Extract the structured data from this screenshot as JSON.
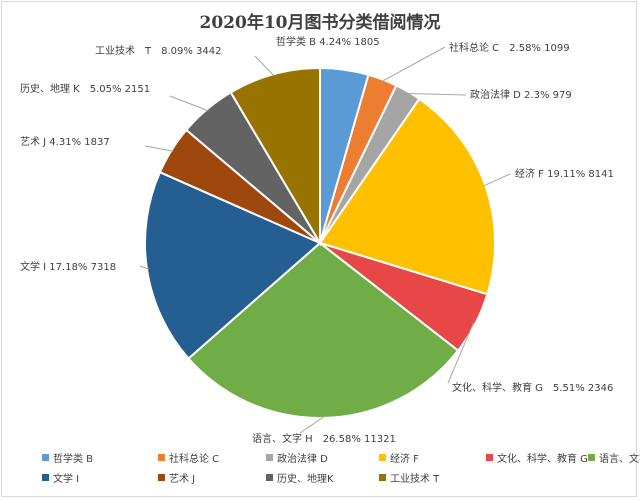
{
  "chart_data": {
    "type": "pie",
    "title": "2020年10月图书分类借阅情况",
    "slices": [
      {
        "legend": "哲学类 B",
        "label": "哲学类 B 4.24% 1805",
        "value": 1805,
        "percent": 4.24,
        "color": "#5b9bd5"
      },
      {
        "legend": "社科总论 C",
        "label": "社科总论 C　2.58% 1099",
        "value": 1099,
        "percent": 2.58,
        "color": "#ed7d31"
      },
      {
        "legend": "政治法律 D",
        "label": "政治法律 D 2.3% 979",
        "value": 979,
        "percent": 2.3,
        "color": "#a5a5a5"
      },
      {
        "legend": "经济 F",
        "label": "经济 F 19.11% 8141",
        "value": 8141,
        "percent": 19.11,
        "color": "#ffc000"
      },
      {
        "legend": "文化、科学、教育 G",
        "label": "文化、科学、教育 G　5.51% 2346",
        "value": 2346,
        "percent": 5.51,
        "color": "#e84747"
      },
      {
        "legend": "语言、文字 H",
        "label": "语言、文字 H　26.58% 11321",
        "value": 11321,
        "percent": 26.58,
        "color": "#70ad47"
      },
      {
        "legend": "文学 I",
        "label": "文学 I 17.18% 7318",
        "value": 7318,
        "percent": 17.18,
        "color": "#255e91"
      },
      {
        "legend": "艺术 J",
        "label": "艺术 J 4.31% 1837",
        "value": 1837,
        "percent": 4.31,
        "color": "#9e480e"
      },
      {
        "legend": "历史、地理K",
        "label": "历史、地理 K　5.05% 2151",
        "value": 2151,
        "percent": 5.05,
        "color": "#636363"
      },
      {
        "legend": "工业技术 T",
        "label": "工业技术　T　8.09% 3442",
        "value": 3442,
        "percent": 8.09,
        "color": "#997300"
      }
    ],
    "legend_position": "bottom"
  }
}
